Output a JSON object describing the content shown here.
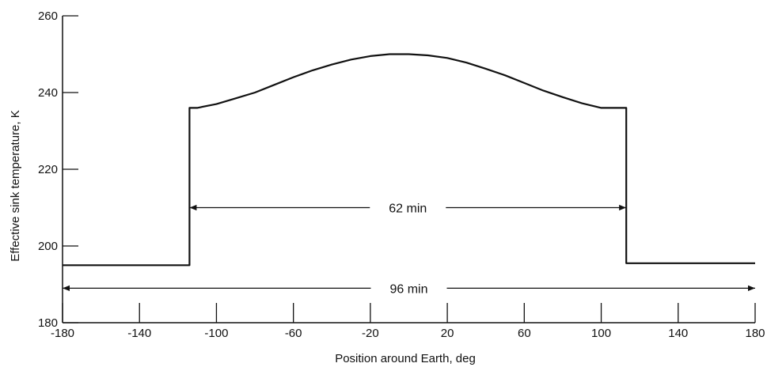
{
  "chart_data": {
    "type": "line",
    "title": "",
    "xlabel": "Position around Earth, deg",
    "ylabel": "Effective sink temperature, K",
    "xlim": [
      -180,
      180
    ],
    "ylim": [
      180,
      260
    ],
    "xticks": [
      -180,
      -140,
      -100,
      -60,
      -20,
      20,
      60,
      100,
      140,
      180
    ],
    "yticks": [
      180,
      200,
      220,
      240,
      260
    ],
    "grid": false,
    "series": [
      {
        "x": [
          -180,
          -114,
          -114,
          -110,
          -100,
          -90,
          -80,
          -70,
          -60,
          -50,
          -40,
          -30,
          -20,
          -10,
          0,
          10,
          20,
          30,
          40,
          50,
          60,
          70,
          80,
          90,
          100,
          108,
          113,
          113,
          180
        ],
        "y": [
          195,
          195,
          236,
          236,
          237,
          238.5,
          240,
          242,
          244,
          245.8,
          247.3,
          248.6,
          249.5,
          250,
          250,
          249.7,
          249,
          247.8,
          246.2,
          244.5,
          242.5,
          240.5,
          238.8,
          237.2,
          236,
          236,
          236,
          195.5,
          195.5
        ]
      }
    ],
    "annotations": [
      {
        "text": "62 min",
        "x_start": -114,
        "x_end": 113,
        "y": 210
      },
      {
        "text": "96 min",
        "x_start": -180,
        "x_end": 180,
        "y": 189
      }
    ]
  }
}
